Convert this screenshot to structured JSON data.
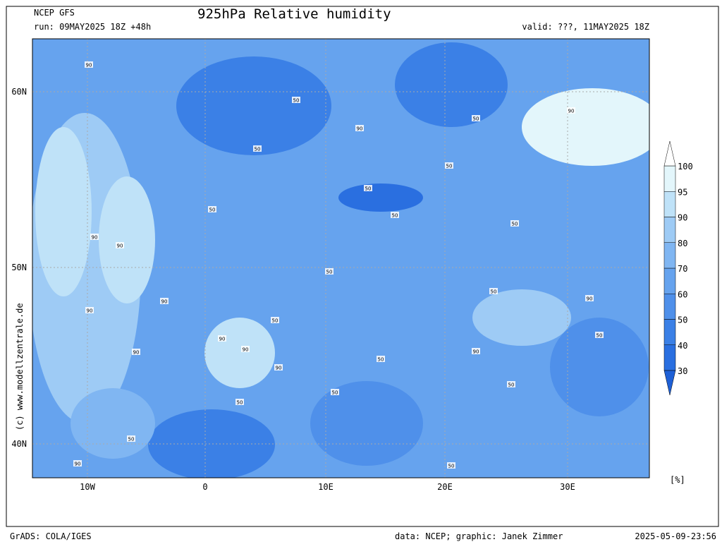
{
  "header": {
    "model": "NCEP GFS",
    "title": "925hPa Relative humidity",
    "run": "run: 09MAY2025 18Z +48h",
    "valid": "valid: ???, 11MAY2025 18Z"
  },
  "map": {
    "lat_labels": [
      "60N",
      "50N",
      "40N"
    ],
    "lon_labels": [
      "10W",
      "0",
      "10E",
      "20E",
      "30E"
    ],
    "contour_labels": [
      90,
      50,
      50,
      90,
      50,
      50,
      50,
      90,
      50,
      50,
      50,
      90,
      90,
      90,
      50,
      90,
      90,
      90,
      90,
      50,
      50,
      50,
      90,
      50,
      90,
      50,
      50,
      90,
      50,
      50,
      90,
      50
    ]
  },
  "colorbar": {
    "levels": [
      30,
      40,
      50,
      60,
      70,
      80,
      90,
      95,
      100
    ],
    "colors": [
      "#2a6fe0",
      "#3b80e6",
      "#4f90ea",
      "#66a3ee",
      "#80b6f2",
      "#9ecbf5",
      "#bfe2f8",
      "#e3f6fb"
    ],
    "below_color": "#1e60d6",
    "unit": "[%]"
  },
  "watermark": "(c) www.modellzentrale.de",
  "footer": {
    "left": "GrADS: COLA/IGES",
    "center": "data: NCEP; graphic: Janek Zimmer",
    "right": "2025-05-09-23:56"
  }
}
